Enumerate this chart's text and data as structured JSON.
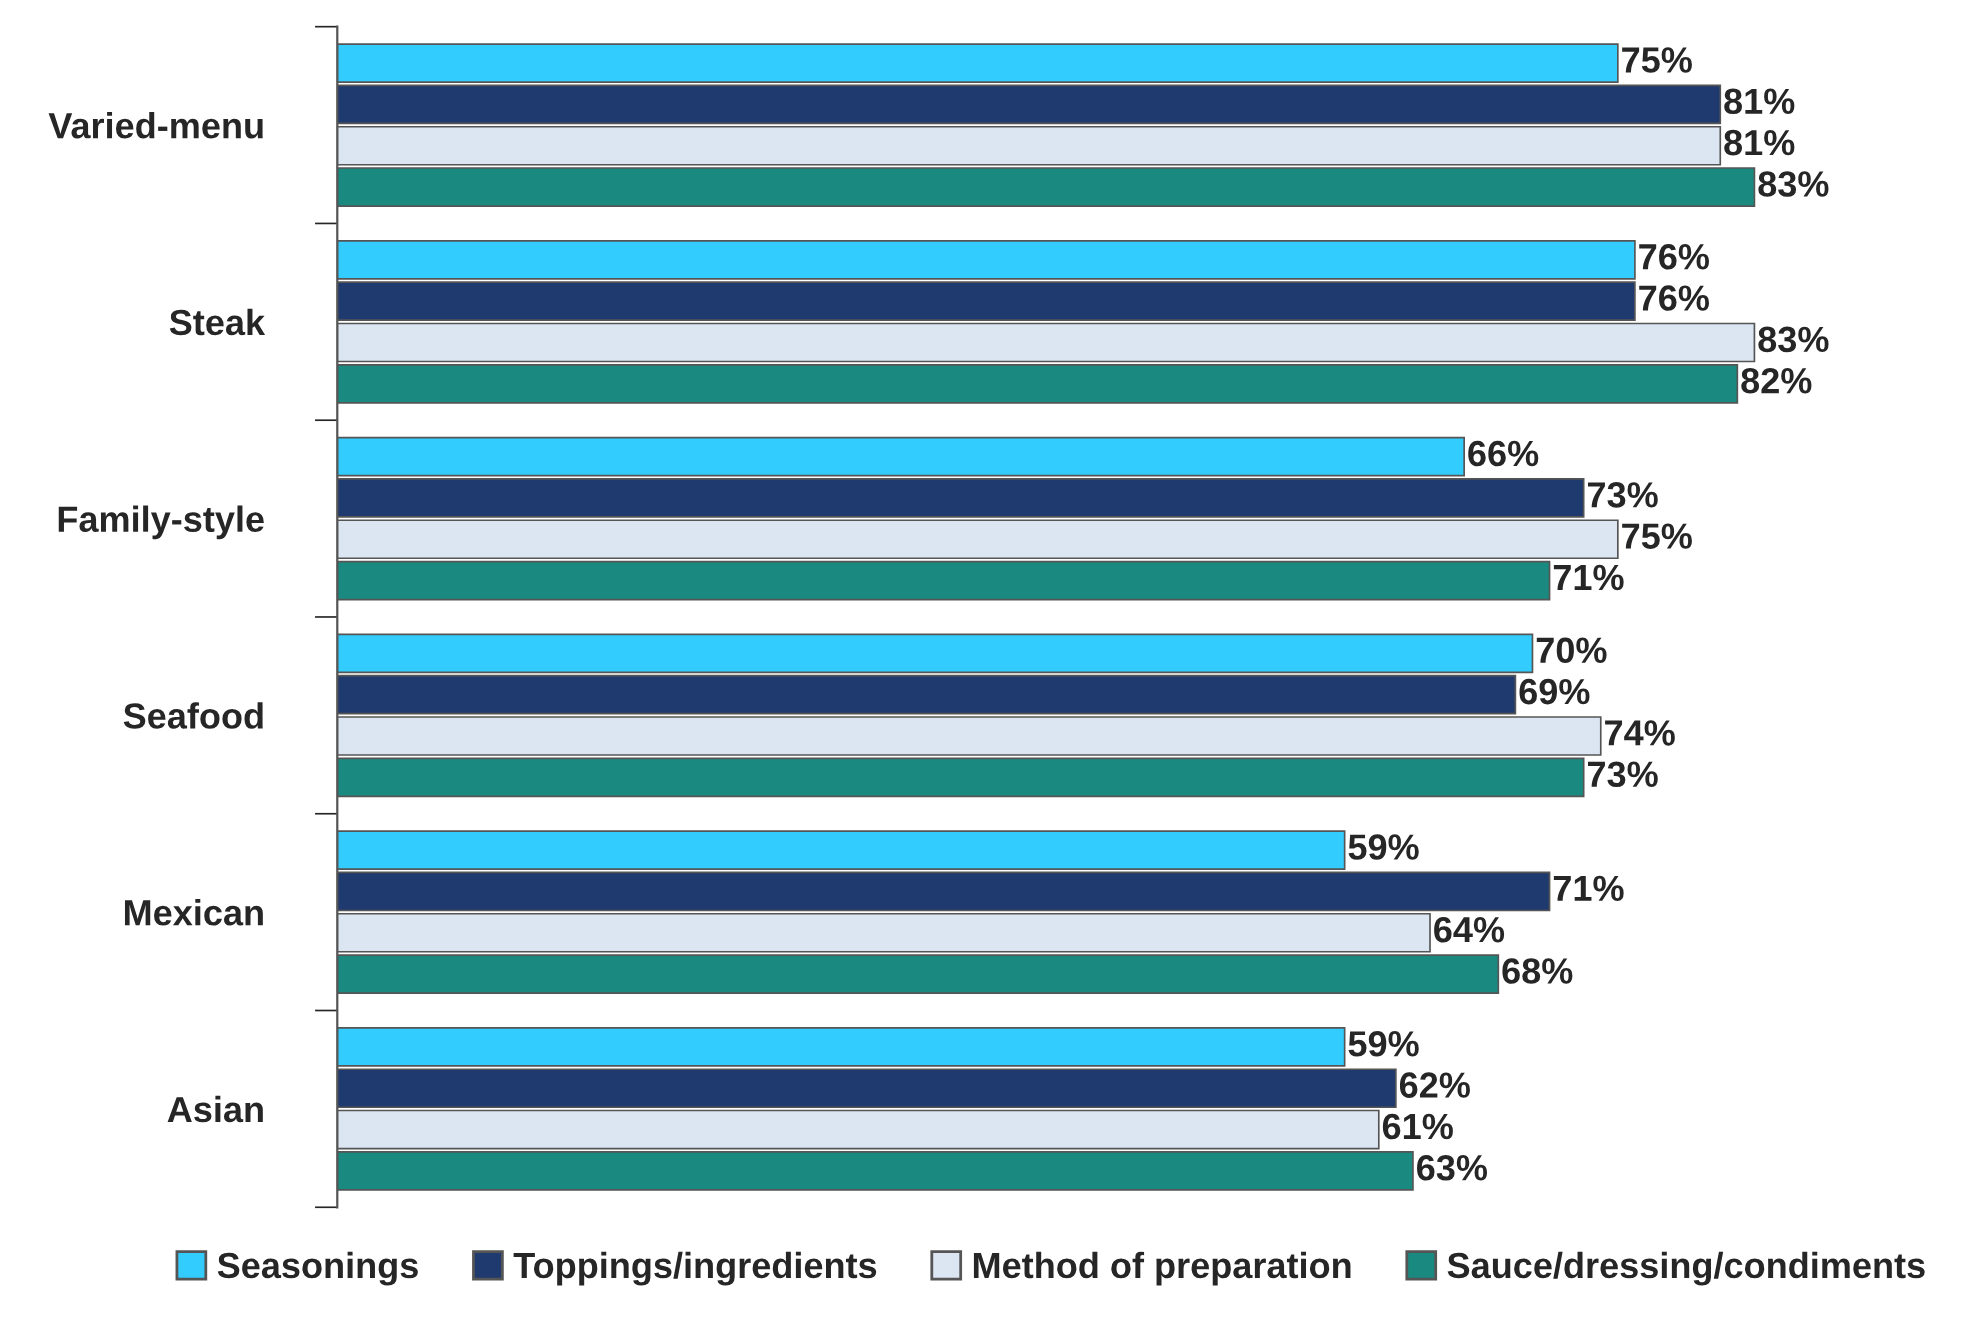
{
  "chart_data": {
    "type": "bar",
    "orientation": "horizontal",
    "legend": "bottom",
    "grid": false,
    "categories": [
      "Varied-menu",
      "Steak",
      "Family-style",
      "Seafood",
      "Mexican",
      "Asian"
    ],
    "series": [
      {
        "name": "Seasonings",
        "color": "#33ccff",
        "values": [
          75,
          76,
          66,
          70,
          59,
          59
        ],
        "value_labels": [
          "75%",
          "76%",
          "66%",
          "70%",
          "59%",
          "59%"
        ]
      },
      {
        "name": "Toppings/ingredients",
        "color": "#1f3a6e",
        "values": [
          81,
          76,
          73,
          69,
          71,
          62
        ],
        "value_labels": [
          "81%",
          "76%",
          "73%",
          "69%",
          "71%",
          "62%"
        ]
      },
      {
        "name": "Method of preparation",
        "color": "#dce6f2",
        "values": [
          81,
          83,
          75,
          74,
          64,
          61
        ],
        "value_labels": [
          "81%",
          "83%",
          "75%",
          "74%",
          "64%",
          "61%"
        ]
      },
      {
        "name": "Sauce/dressing/condiments",
        "color": "#1a8a80",
        "values": [
          83,
          82,
          71,
          73,
          68,
          63
        ],
        "value_labels": [
          "83%",
          "82%",
          "71%",
          "73%",
          "68%",
          "63%"
        ]
      }
    ]
  }
}
